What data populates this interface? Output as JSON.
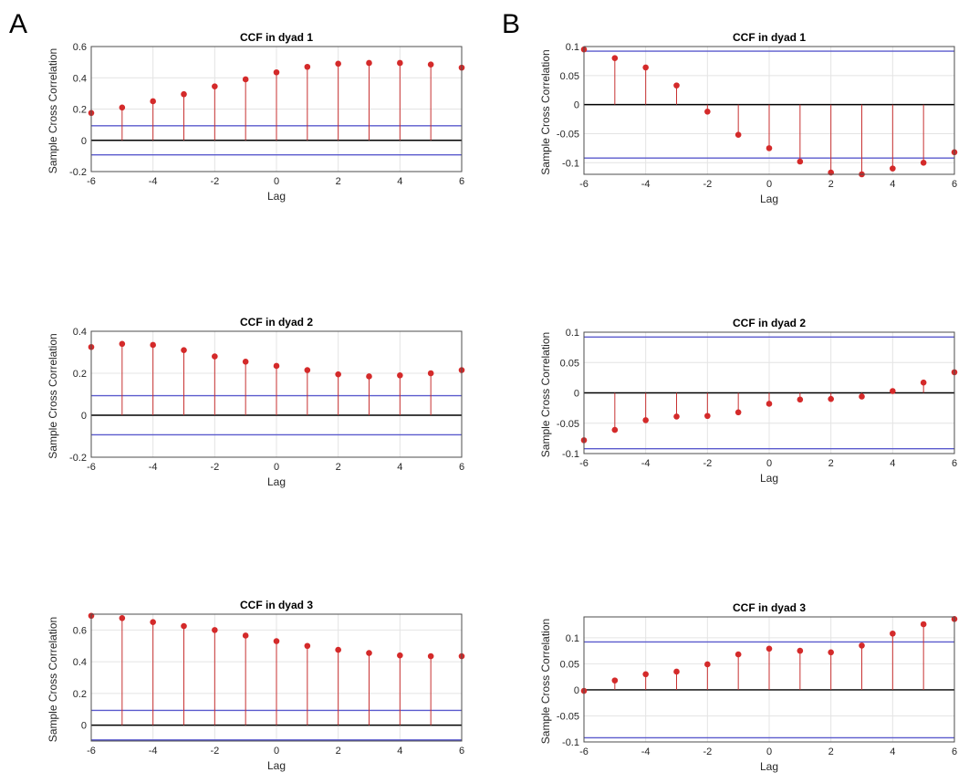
{
  "panels": [
    {
      "letter": "A"
    },
    {
      "letter": "B"
    }
  ],
  "chart_data": [
    {
      "panel": "A",
      "type": "stem",
      "title": "CCF in dyad 1",
      "xlabel": "Lag",
      "ylabel": "Sample Cross Correlation",
      "xlim": [
        -6,
        6
      ],
      "ylim": [
        -0.2,
        0.6
      ],
      "xticks": [
        -6,
        -4,
        -2,
        0,
        2,
        4,
        6
      ],
      "yticks": [
        -0.2,
        0,
        0.2,
        0.4,
        0.6
      ],
      "ytick_labels": [
        "-0.2",
        "0",
        "0.2",
        "0.4",
        "0.6"
      ],
      "grid": true,
      "bounds": [
        0.093,
        -0.093
      ],
      "x": [
        -6,
        -5,
        -4,
        -3,
        -2,
        -1,
        0,
        1,
        2,
        3,
        4,
        5,
        6
      ],
      "values": [
        0.175,
        0.21,
        0.25,
        0.295,
        0.345,
        0.39,
        0.435,
        0.47,
        0.49,
        0.495,
        0.495,
        0.485,
        0.465
      ],
      "colors": {
        "stem": "#c83232",
        "bound": "#5a5acd",
        "zero": "#000000"
      }
    },
    {
      "panel": "A",
      "type": "stem",
      "title": "CCF in dyad 2",
      "xlabel": "Lag",
      "ylabel": "Sample Cross Correlation",
      "xlim": [
        -6,
        6
      ],
      "ylim": [
        -0.2,
        0.4
      ],
      "xticks": [
        -6,
        -4,
        -2,
        0,
        2,
        4,
        6
      ],
      "yticks": [
        -0.2,
        0,
        0.2,
        0.4
      ],
      "ytick_labels": [
        "-0.2",
        "0",
        "0.2",
        "0.4"
      ],
      "grid": true,
      "bounds": [
        0.093,
        -0.093
      ],
      "x": [
        -6,
        -5,
        -4,
        -3,
        -2,
        -1,
        0,
        1,
        2,
        3,
        4,
        5,
        6
      ],
      "values": [
        0.325,
        0.34,
        0.335,
        0.31,
        0.28,
        0.255,
        0.235,
        0.215,
        0.195,
        0.185,
        0.19,
        0.2,
        0.215
      ],
      "colors": {
        "stem": "#c83232",
        "bound": "#5a5acd",
        "zero": "#000000"
      }
    },
    {
      "panel": "A",
      "type": "stem",
      "title": "CCF in dyad 3",
      "xlabel": "Lag",
      "ylabel": "Sample Cross Correlation",
      "xlim": [
        -6,
        6
      ],
      "ylim": [
        -0.1,
        0.7
      ],
      "xticks": [
        -6,
        -4,
        -2,
        0,
        2,
        4,
        6
      ],
      "yticks": [
        0,
        0.2,
        0.4,
        0.6
      ],
      "ytick_labels": [
        "0",
        "0.2",
        "0.4",
        "0.6"
      ],
      "grid": true,
      "bounds": [
        0.093,
        -0.093
      ],
      "x": [
        -6,
        -5,
        -4,
        -3,
        -2,
        -1,
        0,
        1,
        2,
        3,
        4,
        5,
        6
      ],
      "values": [
        0.69,
        0.675,
        0.65,
        0.625,
        0.6,
        0.565,
        0.53,
        0.5,
        0.475,
        0.455,
        0.44,
        0.435,
        0.435
      ],
      "colors": {
        "stem": "#c83232",
        "bound": "#5a5acd",
        "zero": "#000000"
      }
    },
    {
      "panel": "B",
      "type": "stem",
      "title": "CCF in dyad 1",
      "xlabel": "Lag",
      "ylabel": "Sample Cross Correlation",
      "xlim": [
        -6,
        6
      ],
      "ylim": [
        -0.12,
        0.1
      ],
      "xticks": [
        -6,
        -4,
        -2,
        0,
        2,
        4,
        6
      ],
      "yticks": [
        -0.1,
        -0.05,
        0,
        0.05,
        0.1
      ],
      "ytick_labels": [
        "-0.1",
        "-0.05",
        "0",
        "0.05",
        "0.1"
      ],
      "grid": true,
      "bounds": [
        0.092,
        -0.092
      ],
      "x": [
        -6,
        -5,
        -4,
        -3,
        -2,
        -1,
        0,
        1,
        2,
        3,
        4,
        5,
        6
      ],
      "values": [
        0.095,
        0.08,
        0.064,
        0.033,
        -0.012,
        -0.052,
        -0.075,
        -0.098,
        -0.117,
        -0.12,
        -0.11,
        -0.1,
        -0.082
      ],
      "colors": {
        "stem": "#c83232",
        "bound": "#5a5acd",
        "zero": "#000000"
      }
    },
    {
      "panel": "B",
      "type": "stem",
      "title": "CCF in dyad 2",
      "xlabel": "Lag",
      "ylabel": "Sample Cross Correlation",
      "xlim": [
        -6,
        6
      ],
      "ylim": [
        -0.1,
        0.1
      ],
      "xticks": [
        -6,
        -4,
        -2,
        0,
        2,
        4,
        6
      ],
      "yticks": [
        -0.1,
        -0.05,
        0,
        0.05,
        0.1
      ],
      "ytick_labels": [
        "-0.1",
        "-0.05",
        "0",
        "0.05",
        "0.1"
      ],
      "grid": true,
      "bounds": [
        0.092,
        -0.092
      ],
      "x": [
        -6,
        -5,
        -4,
        -3,
        -2,
        -1,
        0,
        1,
        2,
        3,
        4,
        5,
        6
      ],
      "values": [
        -0.078,
        -0.061,
        -0.045,
        -0.039,
        -0.038,
        -0.032,
        -0.018,
        -0.011,
        -0.01,
        -0.006,
        0.003,
        0.017,
        0.034
      ],
      "colors": {
        "stem": "#c83232",
        "bound": "#5a5acd",
        "zero": "#000000"
      }
    },
    {
      "panel": "B",
      "type": "stem",
      "title": "CCF in dyad 3",
      "xlabel": "Lag",
      "ylabel": "Sample Cross Correlation",
      "xlim": [
        -6,
        6
      ],
      "ylim": [
        -0.1,
        0.14
      ],
      "xticks": [
        -6,
        -4,
        -2,
        0,
        2,
        4,
        6
      ],
      "yticks": [
        -0.1,
        -0.05,
        0,
        0.05,
        0.1
      ],
      "ytick_labels": [
        "-0.1",
        "-0.05",
        "0",
        "0.05",
        "0.1"
      ],
      "grid": true,
      "bounds": [
        0.092,
        -0.092
      ],
      "x": [
        -6,
        -5,
        -4,
        -3,
        -2,
        -1,
        0,
        1,
        2,
        3,
        4,
        5,
        6
      ],
      "values": [
        -0.002,
        0.018,
        0.03,
        0.035,
        0.049,
        0.068,
        0.079,
        0.075,
        0.072,
        0.085,
        0.108,
        0.126,
        0.136
      ],
      "colors": {
        "stem": "#c83232",
        "bound": "#5a5acd",
        "zero": "#000000"
      }
    }
  ]
}
